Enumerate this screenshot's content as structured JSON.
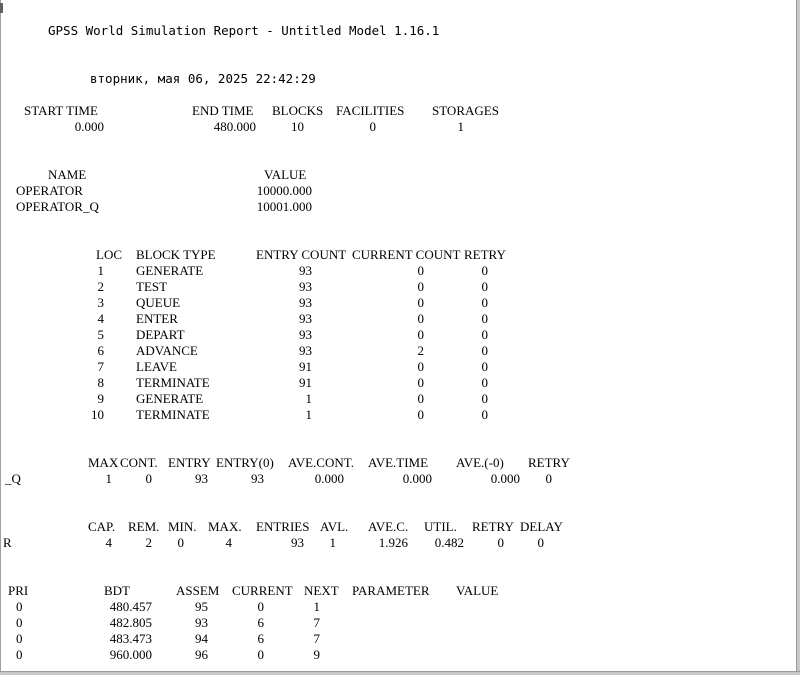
{
  "report": {
    "title": "GPSS World Simulation Report - Untitled Model 1.16.1",
    "datetime": "вторник, мая 06, 2025 22:42:29"
  },
  "summary": {
    "headers": [
      "START TIME",
      "END TIME",
      "BLOCKS",
      "FACILITIES",
      "STORAGES"
    ],
    "values": [
      "0.000",
      "480.000",
      "10",
      "0",
      "1"
    ]
  },
  "names": {
    "headers": [
      "NAME",
      "VALUE"
    ],
    "rows": [
      {
        "name": "OPERATOR",
        "value": "10000.000"
      },
      {
        "name": "OPERATOR_Q",
        "value": "10001.000"
      }
    ]
  },
  "blocks": {
    "headers": [
      "LOC",
      "BLOCK TYPE",
      "ENTRY COUNT",
      "CURRENT COUNT",
      "RETRY"
    ],
    "rows": [
      {
        "loc": "1",
        "type": "GENERATE",
        "entry": "93",
        "current": "0",
        "retry": "0"
      },
      {
        "loc": "2",
        "type": "TEST",
        "entry": "93",
        "current": "0",
        "retry": "0"
      },
      {
        "loc": "3",
        "type": "QUEUE",
        "entry": "93",
        "current": "0",
        "retry": "0"
      },
      {
        "loc": "4",
        "type": "ENTER",
        "entry": "93",
        "current": "0",
        "retry": "0"
      },
      {
        "loc": "5",
        "type": "DEPART",
        "entry": "93",
        "current": "0",
        "retry": "0"
      },
      {
        "loc": "6",
        "type": "ADVANCE",
        "entry": "93",
        "current": "2",
        "retry": "0"
      },
      {
        "loc": "7",
        "type": "LEAVE",
        "entry": "91",
        "current": "0",
        "retry": "0"
      },
      {
        "loc": "8",
        "type": "TERMINATE",
        "entry": "91",
        "current": "0",
        "retry": "0"
      },
      {
        "loc": "9",
        "type": "GENERATE",
        "entry": "1",
        "current": "0",
        "retry": "0"
      },
      {
        "loc": "10",
        "type": "TERMINATE",
        "entry": "1",
        "current": "0",
        "retry": "0"
      }
    ]
  },
  "queue": {
    "headers": [
      "MAX",
      "CONT.",
      "ENTRY",
      "ENTRY(0)",
      "AVE.CONT.",
      "AVE.TIME",
      "AVE.(-0)",
      "RETRY"
    ],
    "row": {
      "name": "_Q",
      "values": [
        "1",
        "0",
        "93",
        "93",
        "0.000",
        "0.000",
        "0.000",
        "0"
      ]
    }
  },
  "storage": {
    "headers": [
      "CAP.",
      "REM.",
      "MIN.",
      "MAX.",
      "ENTRIES",
      "AVL.",
      "AVE.C.",
      "UTIL.",
      "RETRY",
      "DELAY"
    ],
    "row": {
      "name": "R",
      "values": [
        "4",
        "2",
        "0",
        "4",
        "93",
        "1",
        "1.926",
        "0.482",
        "0",
        "0"
      ]
    }
  },
  "fec": {
    "headers": [
      "PRI",
      "BDT",
      "ASSEM",
      "CURRENT",
      "NEXT",
      "PARAMETER",
      "VALUE"
    ],
    "rows": [
      {
        "pri": "0",
        "bdt": "480.457",
        "assem": "95",
        "current": "0",
        "next": "1"
      },
      {
        "pri": "0",
        "bdt": "482.805",
        "assem": "93",
        "current": "6",
        "next": "7"
      },
      {
        "pri": "0",
        "bdt": "483.473",
        "assem": "94",
        "current": "6",
        "next": "7"
      },
      {
        "pri": "0",
        "bdt": "960.000",
        "assem": "96",
        "current": "0",
        "next": "9"
      }
    ]
  }
}
